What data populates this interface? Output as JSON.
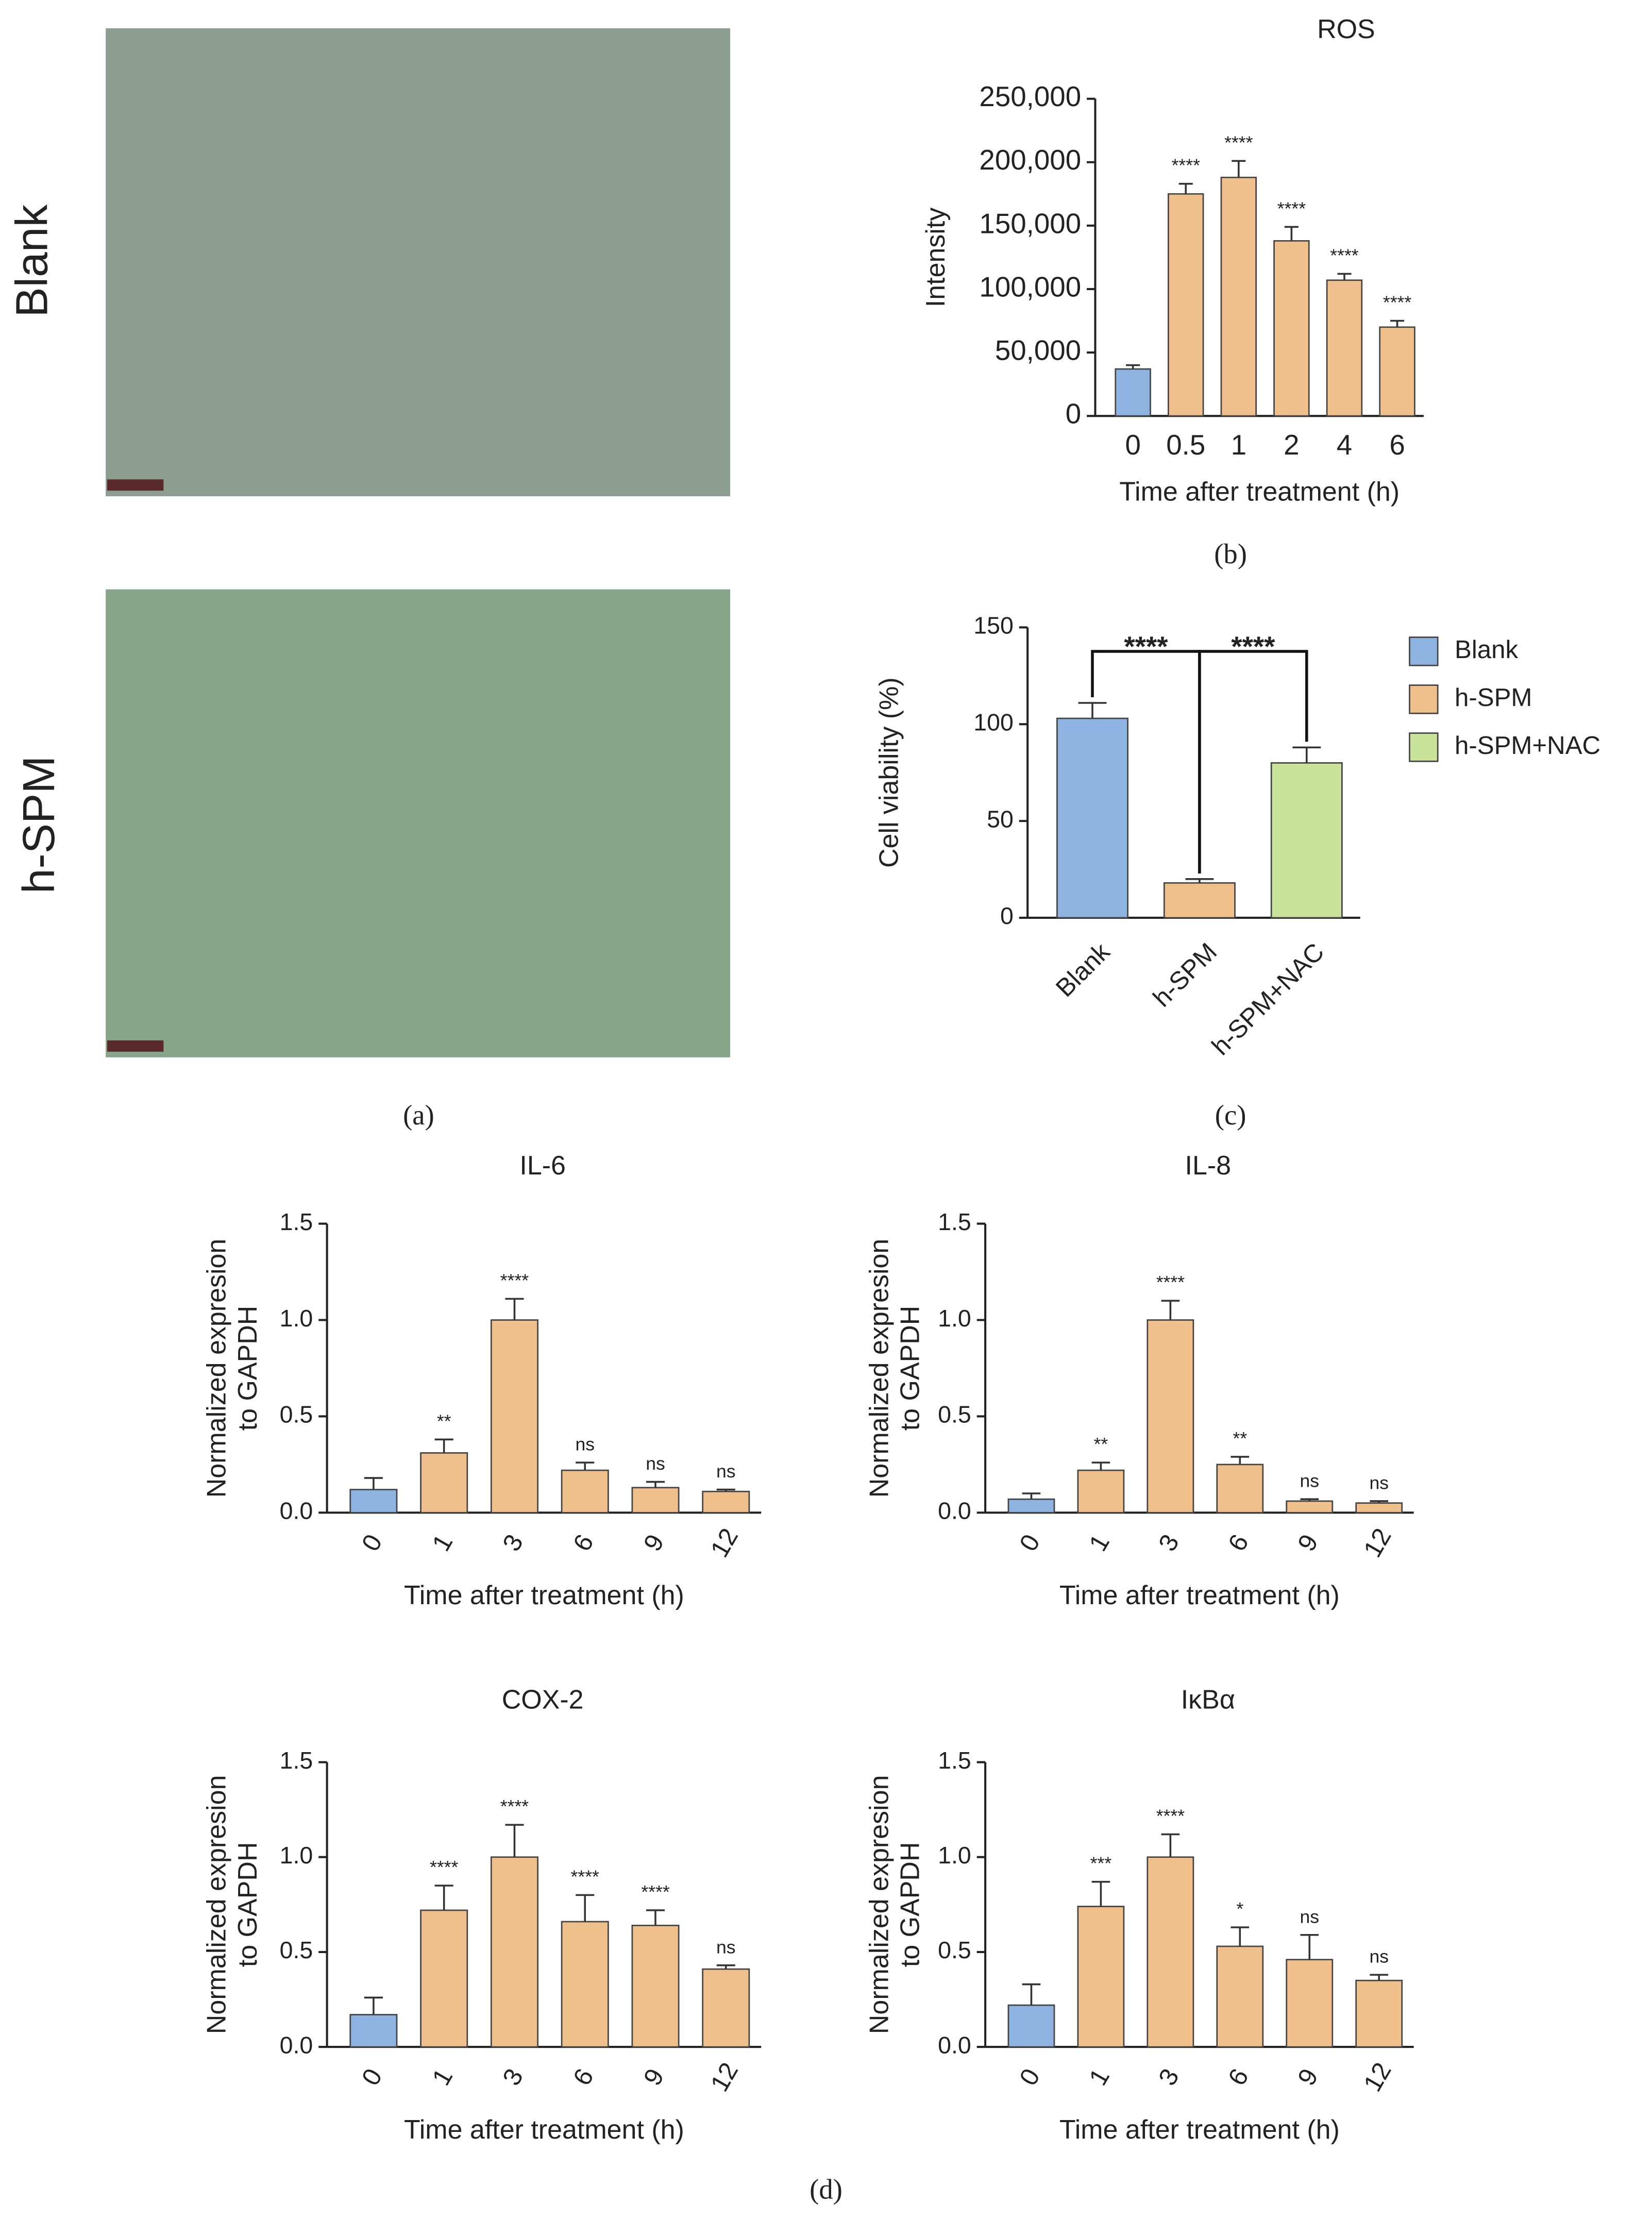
{
  "panel_a": {
    "rows": [
      "Blank",
      "h-SPM"
    ]
  },
  "captions": {
    "a": "(a)",
    "b": "(b)",
    "c": "(c)",
    "d": "(d)"
  },
  "chart_data": [
    {
      "type": "bar",
      "title": "ROS",
      "ylabel": [
        "Intensity"
      ],
      "xlabel": "Time after treatment (h)",
      "categories": [
        "0",
        "0.5",
        "1",
        "2",
        "4",
        "6"
      ],
      "values": [
        37000,
        175000,
        188000,
        138000,
        107000,
        70000
      ],
      "errors": [
        3000,
        8000,
        13000,
        11000,
        5000,
        5000
      ],
      "annotations": [
        null,
        "****",
        "****",
        "****",
        "****",
        "****"
      ],
      "colors": [
        "#8fb3e0",
        "#efc08c",
        "#efc08c",
        "#efc08c",
        "#efc08c",
        "#efc08c"
      ],
      "ylim": [
        0,
        250000
      ],
      "yticks": [
        0,
        {
          "value": 50000,
          "label": "50,000"
        },
        {
          "value": 100000,
          "label": "100,000"
        },
        {
          "value": 150000,
          "label": "150,000"
        },
        {
          "value": 200000,
          "label": "200,000"
        },
        {
          "value": 250000,
          "label": "250,000"
        }
      ]
    },
    {
      "type": "bar",
      "ylabel": [
        "Cell viability (%)"
      ],
      "categories": [
        "Blank",
        "h-SPM",
        "h-SPM+NAC"
      ],
      "values": [
        103,
        18,
        80
      ],
      "errors": [
        8,
        2,
        8
      ],
      "colors": [
        "#8fb3e0",
        "#efc08c",
        "#c9e39a"
      ],
      "comparisons": [
        {
          "pair": [
            0,
            1
          ],
          "label": "****"
        },
        {
          "pair": [
            1,
            2
          ],
          "label": "****"
        }
      ],
      "legend": "right",
      "ylim": [
        0,
        150
      ],
      "yticks": [
        0,
        50,
        100,
        150
      ]
    },
    {
      "type": "bar",
      "title": "IL-6",
      "ylabel": [
        "Normalized expresion",
        "to GAPDH"
      ],
      "xlabel": "Time after treatment (h)",
      "categories": [
        "0",
        "1",
        "3",
        "6",
        "9",
        "12"
      ],
      "values": [
        0.12,
        0.31,
        1.0,
        0.22,
        0.13,
        0.11
      ],
      "errors": [
        0.06,
        0.07,
        0.11,
        0.04,
        0.03,
        0.01
      ],
      "annotations": [
        null,
        "**",
        "****",
        "ns",
        "ns",
        "ns"
      ],
      "colors": [
        "#8fb3e0",
        "#efc08c",
        "#efc08c",
        "#efc08c",
        "#efc08c",
        "#efc08c"
      ],
      "ylim": [
        0,
        1.5
      ],
      "yticks": [
        {
          "value": 0,
          "label": "0.0"
        },
        0.5,
        {
          "value": 1,
          "label": "1.0"
        },
        1.5
      ]
    },
    {
      "type": "bar",
      "title": "IL-8",
      "ylabel": [
        "Normalized expresion",
        "to GAPDH"
      ],
      "xlabel": "Time after treatment (h)",
      "categories": [
        "0",
        "1",
        "3",
        "6",
        "9",
        "12"
      ],
      "values": [
        0.07,
        0.22,
        1.0,
        0.25,
        0.06,
        0.05
      ],
      "errors": [
        0.03,
        0.04,
        0.1,
        0.04,
        0.01,
        0.01
      ],
      "annotations": [
        null,
        "**",
        "****",
        "**",
        "ns",
        "ns"
      ],
      "colors": [
        "#8fb3e0",
        "#efc08c",
        "#efc08c",
        "#efc08c",
        "#efc08c",
        "#efc08c"
      ],
      "ylim": [
        0,
        1.5
      ],
      "yticks": [
        {
          "value": 0,
          "label": "0.0"
        },
        0.5,
        {
          "value": 1,
          "label": "1.0"
        },
        1.5
      ]
    },
    {
      "type": "bar",
      "title": "COX-2",
      "ylabel": [
        "Normalized expresion",
        "to GAPDH"
      ],
      "xlabel": "Time after treatment (h)",
      "categories": [
        "0",
        "1",
        "3",
        "6",
        "9",
        "12"
      ],
      "values": [
        0.17,
        0.72,
        1.0,
        0.66,
        0.64,
        0.41
      ],
      "errors": [
        0.09,
        0.13,
        0.17,
        0.14,
        0.08,
        0.02
      ],
      "annotations": [
        null,
        "****",
        "****",
        "****",
        "****",
        "ns"
      ],
      "colors": [
        "#8fb3e0",
        "#efc08c",
        "#efc08c",
        "#efc08c",
        "#efc08c",
        "#efc08c"
      ],
      "ylim": [
        0,
        1.5
      ],
      "yticks": [
        {
          "value": 0,
          "label": "0.0"
        },
        0.5,
        {
          "value": 1,
          "label": "1.0"
        },
        1.5
      ]
    },
    {
      "type": "bar",
      "title": "IκBα",
      "ylabel": [
        "Normalized expresion",
        "to GAPDH"
      ],
      "xlabel": "Time after treatment (h)",
      "categories": [
        "0",
        "1",
        "3",
        "6",
        "9",
        "12"
      ],
      "values": [
        0.22,
        0.74,
        1.0,
        0.53,
        0.46,
        0.35
      ],
      "errors": [
        0.11,
        0.13,
        0.12,
        0.1,
        0.13,
        0.03
      ],
      "annotations": [
        null,
        "***",
        "****",
        "*",
        "ns",
        "ns"
      ],
      "colors": [
        "#8fb3e0",
        "#efc08c",
        "#efc08c",
        "#efc08c",
        "#efc08c",
        "#efc08c"
      ],
      "ylim": [
        0,
        1.5
      ],
      "yticks": [
        {
          "value": 0,
          "label": "0.0"
        },
        0.5,
        {
          "value": 1,
          "label": "1.0"
        },
        1.5
      ]
    }
  ]
}
